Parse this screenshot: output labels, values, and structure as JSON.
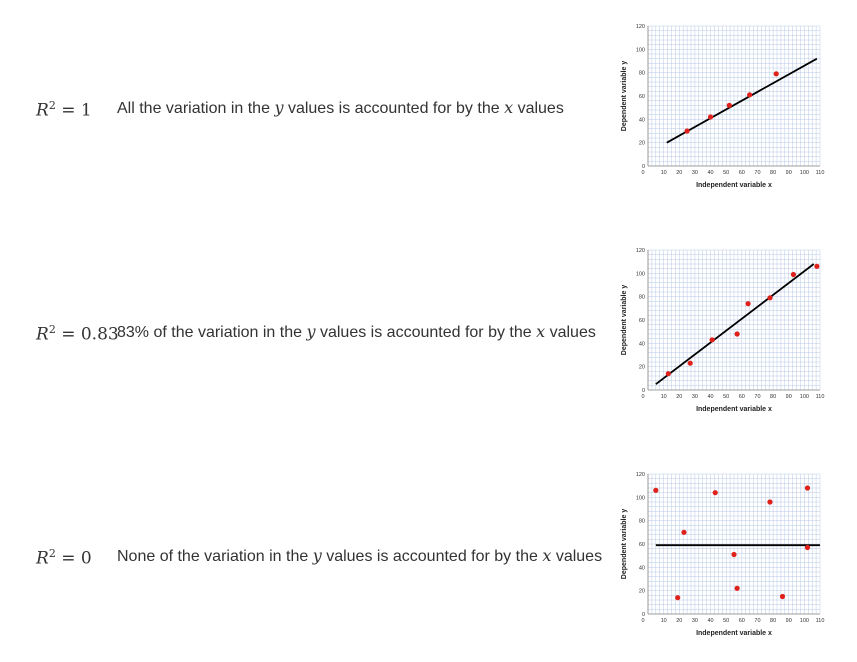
{
  "rows": [
    {
      "r2_text": "R² = 1",
      "r2_symbol": "R",
      "r2_exp": "2",
      "r2_value": "= 1",
      "desc_pre": "All the variation in the",
      "var_y": "y",
      "desc_mid": "values is accounted for by the",
      "var_x": "x",
      "desc_post": "values"
    },
    {
      "r2_text": "R² = 0.83",
      "r2_symbol": "R",
      "r2_exp": "2",
      "r2_value": "= 0.83",
      "desc_pre": "83% of the variation in the",
      "var_y": "y",
      "desc_mid": "values is accounted for by the",
      "var_x": "x",
      "desc_post": "values"
    },
    {
      "r2_text": "R² = 0",
      "r2_symbol": "R",
      "r2_exp": "2",
      "r2_value": "= 0",
      "desc_pre": "None of the variation in the",
      "var_y": "y",
      "desc_mid": "values is accounted for by the",
      "var_x": "x",
      "desc_post": "values"
    }
  ],
  "colors": {
    "point": "#e0201b",
    "line": "#000000",
    "grid": "#b9c8e6",
    "axis": "#888888"
  },
  "chart_data": [
    {
      "type": "scatter",
      "title": "",
      "xlabel": "Independent variable x",
      "ylabel": "Dependent variable y",
      "xlim": [
        0,
        110
      ],
      "ylim": [
        0,
        120
      ],
      "xticks": [
        0,
        10,
        20,
        30,
        40,
        50,
        60,
        70,
        80,
        90,
        100,
        110
      ],
      "yticks": [
        0,
        20,
        40,
        60,
        80,
        100,
        120
      ],
      "grid": true,
      "points": [
        [
          25,
          30
        ],
        [
          40,
          42
        ],
        [
          52,
          52
        ],
        [
          65,
          61
        ],
        [
          82,
          79
        ]
      ],
      "fit_line": [
        [
          12,
          20
        ],
        [
          108,
          92
        ]
      ]
    },
    {
      "type": "scatter",
      "title": "",
      "xlabel": "Independent variable x",
      "ylabel": "Dependent variable y",
      "xlim": [
        0,
        110
      ],
      "ylim": [
        0,
        120
      ],
      "xticks": [
        0,
        10,
        20,
        30,
        40,
        50,
        60,
        70,
        80,
        90,
        100,
        110
      ],
      "yticks": [
        0,
        20,
        40,
        60,
        80,
        100,
        120
      ],
      "grid": true,
      "points": [
        [
          13,
          14
        ],
        [
          27,
          23
        ],
        [
          41,
          43
        ],
        [
          57,
          48
        ],
        [
          64,
          74
        ],
        [
          78,
          79
        ],
        [
          93,
          99
        ],
        [
          108,
          106
        ]
      ],
      "fit_line": [
        [
          5,
          5
        ],
        [
          106,
          108
        ]
      ]
    },
    {
      "type": "scatter",
      "title": "",
      "xlabel": "Independent variable x",
      "ylabel": "Dependent variable y",
      "xlim": [
        0,
        110
      ],
      "ylim": [
        0,
        120
      ],
      "xticks": [
        0,
        10,
        20,
        30,
        40,
        50,
        60,
        70,
        80,
        90,
        100,
        110
      ],
      "yticks": [
        0,
        20,
        40,
        60,
        80,
        100,
        120
      ],
      "grid": true,
      "points": [
        [
          5,
          106
        ],
        [
          19,
          14
        ],
        [
          23,
          70
        ],
        [
          43,
          104
        ],
        [
          55,
          51
        ],
        [
          57,
          22
        ],
        [
          78,
          96
        ],
        [
          86,
          15
        ],
        [
          102,
          108
        ],
        [
          102,
          57
        ]
      ],
      "fit_line": [
        [
          5,
          59
        ],
        [
          110,
          59
        ]
      ]
    }
  ]
}
